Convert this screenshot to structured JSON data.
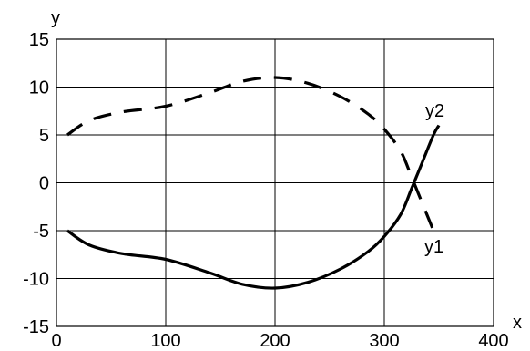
{
  "chart_data": {
    "type": "line",
    "title": "",
    "xlabel": "x",
    "ylabel": "y",
    "xlim": [
      0,
      400
    ],
    "ylim": [
      -15,
      15
    ],
    "grid": true,
    "x_ticks": [
      0,
      100,
      200,
      300,
      400
    ],
    "y_ticks": [
      -15,
      -10,
      -5,
      0,
      5,
      10,
      15
    ],
    "x_tick_labels": [
      "0",
      "100",
      "200",
      "300",
      "400"
    ],
    "y_tick_labels": [
      "-15",
      "-10",
      "-5",
      "0",
      "5",
      "10",
      "15"
    ],
    "series": [
      {
        "name": "y1",
        "style": "dashed",
        "color": "#000000",
        "points": [
          [
            10,
            5
          ],
          [
            30,
            6.5
          ],
          [
            60,
            7.4
          ],
          [
            100,
            8.0
          ],
          [
            140,
            9.4
          ],
          [
            170,
            10.6
          ],
          [
            200,
            11.0
          ],
          [
            230,
            10.4
          ],
          [
            260,
            9.0
          ],
          [
            285,
            7.2
          ],
          [
            300,
            5.6
          ],
          [
            315,
            3.3
          ],
          [
            325,
            0.6
          ],
          [
            335,
            -2.2
          ],
          [
            345,
            -5.0
          ]
        ]
      },
      {
        "name": "y2",
        "style": "solid",
        "color": "#000000",
        "points": [
          [
            10,
            -5
          ],
          [
            30,
            -6.5
          ],
          [
            60,
            -7.4
          ],
          [
            100,
            -8.0
          ],
          [
            140,
            -9.4
          ],
          [
            170,
            -10.6
          ],
          [
            200,
            -11.0
          ],
          [
            230,
            -10.4
          ],
          [
            260,
            -9.0
          ],
          [
            285,
            -7.2
          ],
          [
            300,
            -5.6
          ],
          [
            315,
            -3.3
          ],
          [
            325,
            -0.6
          ],
          [
            335,
            2.2
          ],
          [
            345,
            5.0
          ],
          [
            350,
            6.0
          ]
        ]
      }
    ]
  }
}
